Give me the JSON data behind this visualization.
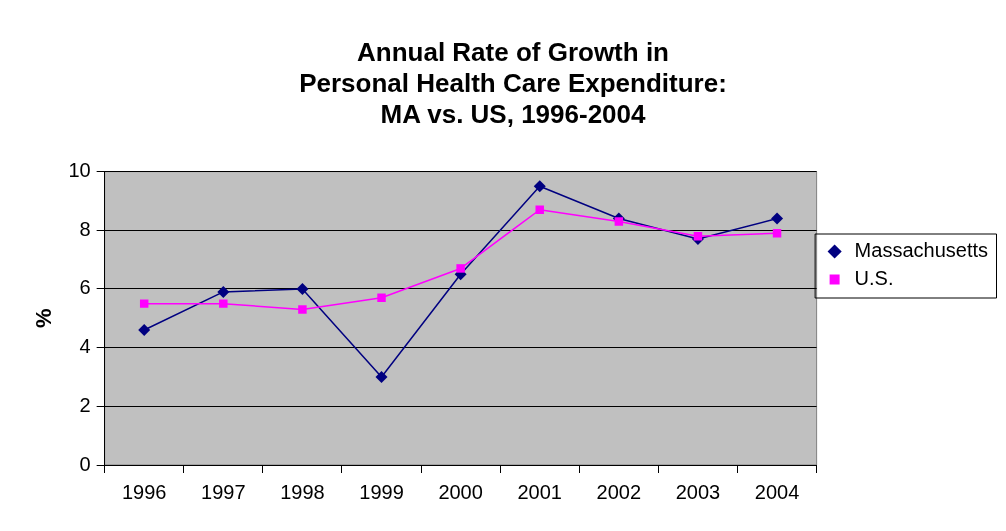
{
  "chart_data": {
    "type": "line",
    "title": [
      "Annual Rate of Growth in",
      "Personal Health Care Expenditure:",
      "MA vs. US, 1996-2004"
    ],
    "ylabel": "%",
    "categories": [
      "1996",
      "1997",
      "1998",
      "1999",
      "2000",
      "2001",
      "2002",
      "2003",
      "2004"
    ],
    "series": [
      {
        "name": "Massachusetts",
        "color": "#000080",
        "marker": "diamond",
        "values": [
          4.6,
          5.9,
          6.0,
          3.0,
          6.5,
          9.5,
          8.4,
          7.7,
          8.4
        ]
      },
      {
        "name": "U.S.",
        "color": "#ff00ff",
        "marker": "square",
        "values": [
          5.5,
          5.5,
          5.3,
          5.7,
          6.7,
          8.7,
          8.3,
          7.8,
          7.9
        ]
      }
    ],
    "ylim": [
      0,
      10
    ],
    "yticks": [
      0,
      2,
      4,
      6,
      8,
      10
    ],
    "grid": "y",
    "legend": "right",
    "line_style": "solid"
  }
}
